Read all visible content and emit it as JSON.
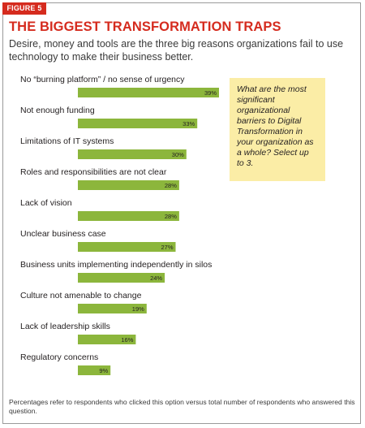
{
  "figure_label": "FIGURE 5",
  "title": "THE BIGGEST TRANSFORMATION TRAPS",
  "subtitle": "Desire, money and tools are the three big reasons organizations fail to use technology to make their business better.",
  "question": "What are the most significant organizational barriers to Digital Transformation in your organization as a whole? Select up to 3.",
  "footnote": "Percentages refer to respondents who clicked this option versus total number of respondents who answered this question.",
  "colors": {
    "title_red": "#d52b1e",
    "bar_green": "#8cb63c",
    "question_box": "#fbeda6"
  },
  "chart_data": {
    "type": "bar",
    "orientation": "horizontal",
    "categories": [
      "No “burning platform” / no sense of urgency",
      "Not enough funding",
      "Limitations of IT systems",
      "Roles and responsibilities are not clear",
      "Lack of vision",
      "Unclear business case",
      "Business units implementing independently in silos",
      "Culture not amenable to change",
      "Lack of leadership skills",
      "Regulatory concerns"
    ],
    "values": [
      39,
      33,
      30,
      28,
      28,
      27,
      24,
      19,
      16,
      9
    ],
    "value_labels": [
      "39%",
      "33%",
      "30%",
      "28%",
      "28%",
      "27%",
      "24%",
      "19%",
      "16%",
      "9%"
    ],
    "unit": "%",
    "xlim": [
      0,
      39
    ],
    "grid": false,
    "legend": "none"
  }
}
